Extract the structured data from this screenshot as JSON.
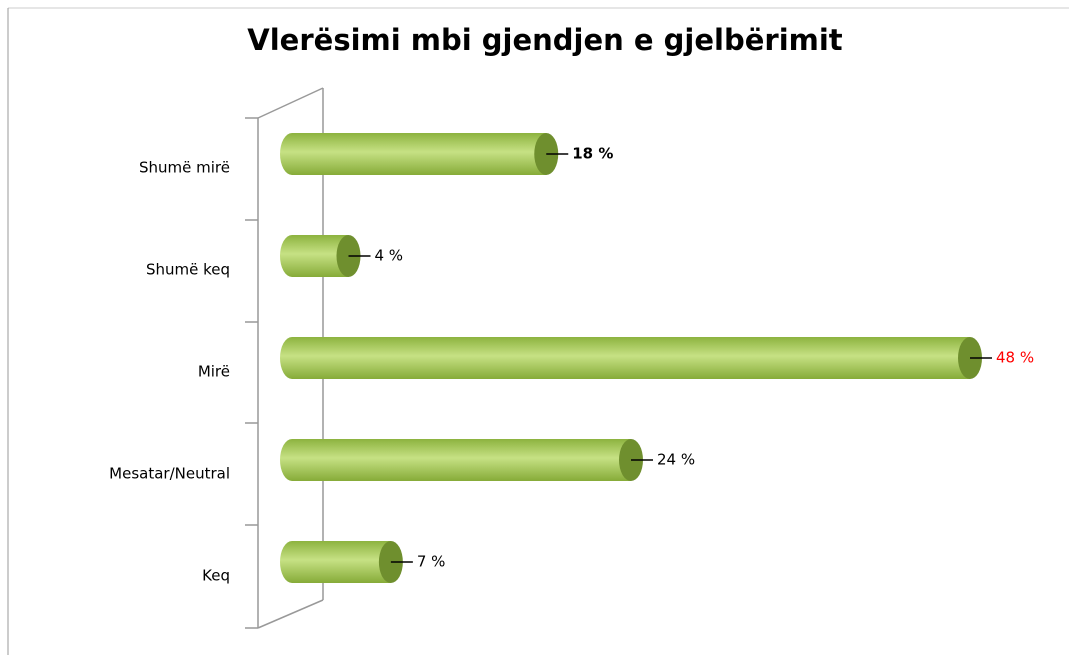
{
  "chart_data": {
    "type": "bar",
    "orientation": "horizontal",
    "title": "Vlerësimi mbi gjendjen e gjelbërimit",
    "categories": [
      "Shumë mirë",
      "Shumë keq",
      "Mirë",
      "Mesatar/Neutral",
      "Keq"
    ],
    "values": [
      18,
      4,
      48,
      24,
      7
    ],
    "value_labels": [
      "18 %",
      "4 %",
      "48 %",
      "24 %",
      "7 %"
    ],
    "label_colors": [
      "#000000",
      "#000000",
      "#ff0000",
      "#000000",
      "#000000"
    ],
    "color": "#9bc44f"
  }
}
